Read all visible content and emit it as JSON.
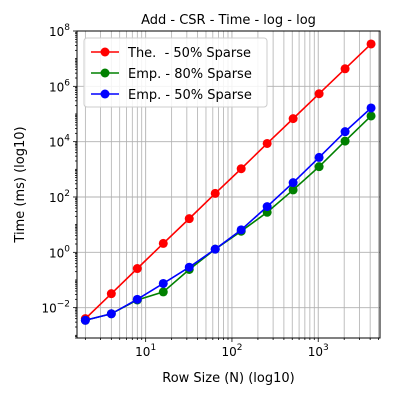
{
  "chart_data": {
    "type": "line",
    "title": "Add - CSR - Time - log - log",
    "xlabel": "Row Size (N) (log10)",
    "ylabel": "Time (ms) (log10)",
    "xscale": "log",
    "yscale": "log",
    "xlim": [
      1.6,
      5200
    ],
    "ylim": [
      0.0008,
      100000000
    ],
    "grid": true,
    "legend_position": "top-left",
    "x_ticks": [
      {
        "value": 10,
        "base": "10",
        "exp": "1"
      },
      {
        "value": 100,
        "base": "10",
        "exp": "2"
      },
      {
        "value": 1000,
        "base": "10",
        "exp": "3"
      }
    ],
    "y_ticks": [
      {
        "value": 0.01,
        "base": "10",
        "exp": "−2"
      },
      {
        "value": 1,
        "base": "10",
        "exp": "0"
      },
      {
        "value": 100,
        "base": "10",
        "exp": "2"
      },
      {
        "value": 10000,
        "base": "10",
        "exp": "4"
      },
      {
        "value": 1000000,
        "base": "10",
        "exp": "6"
      },
      {
        "value": 100000000,
        "base": "10",
        "exp": "8"
      }
    ],
    "x": [
      2,
      4,
      8,
      16,
      32,
      64,
      128,
      256,
      512,
      1024,
      2048,
      4096
    ],
    "series": [
      {
        "name": "The.  - 50% Sparse",
        "color": "#ff0000",
        "values": [
          0.004,
          0.032,
          0.26,
          2.1,
          16.5,
          135,
          1050,
          8600,
          68000,
          540000,
          4300000,
          34000000
        ]
      },
      {
        "name": "Emp. - 80% Sparse",
        "color": "#008000",
        "values": [
          0.0035,
          0.006,
          0.019,
          0.037,
          0.24,
          1.3,
          5.8,
          28,
          180,
          1250,
          10500,
          85000
        ]
      },
      {
        "name": "Emp. - 50% Sparse",
        "color": "#0000ff",
        "values": [
          0.0035,
          0.006,
          0.02,
          0.075,
          0.29,
          1.3,
          6.5,
          45,
          330,
          2700,
          23000,
          165000
        ]
      }
    ]
  }
}
